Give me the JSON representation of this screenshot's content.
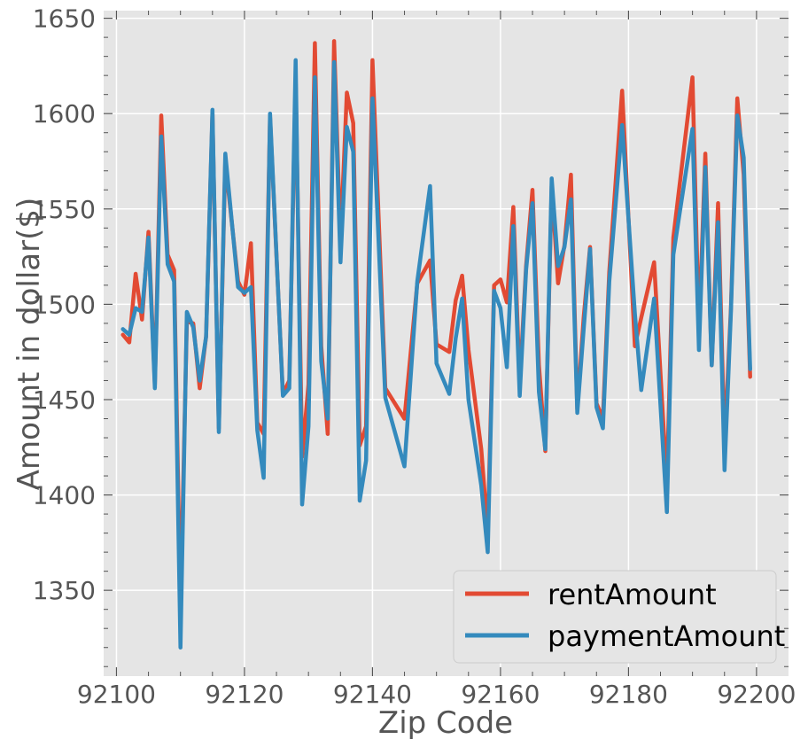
{
  "chart_data": {
    "type": "line",
    "title": "",
    "xlabel": "Zip Code",
    "ylabel": "Amount in dollar($)",
    "xlim": [
      92098,
      92205
    ],
    "ylim": [
      1305,
      1654
    ],
    "xticks": [
      92100,
      92120,
      92140,
      92160,
      92180,
      92200
    ],
    "yticks": [
      1350,
      1400,
      1450,
      1500,
      1550,
      1600,
      1650
    ],
    "x_tick_labels": [
      "92100",
      "92120",
      "92140",
      "92160",
      "92180",
      "92200"
    ],
    "y_tick_labels": [
      "1350",
      "1400",
      "1450",
      "1500",
      "1550",
      "1600",
      "1650"
    ],
    "grid": true,
    "legend_position": "lower-right",
    "colors": {
      "background": "#e5e5e5",
      "grid": "#ffffff",
      "axis": "#555555"
    },
    "series": [
      {
        "name": "rentAmount",
        "color": "#e24a33",
        "x": [
          92101,
          92102,
          92103,
          92104,
          92105,
          92106,
          92107,
          92108,
          92109,
          92110,
          92111,
          92112,
          92113,
          92114,
          92115,
          92116,
          92117,
          92119,
          92120,
          92121,
          92122,
          92123,
          92124,
          92126,
          92127,
          92128,
          92129,
          92130,
          92131,
          92132,
          92133,
          92134,
          92135,
          92136,
          92137,
          92138,
          92139,
          92140,
          92142,
          92145,
          92147,
          92149,
          92150,
          92152,
          92153,
          92154,
          92155,
          92157,
          92158,
          92159,
          92160,
          92161,
          92162,
          92163,
          92164,
          92165,
          92166,
          92167,
          92168,
          92169,
          92170,
          92171,
          92172,
          92173,
          92174,
          92175,
          92176,
          92177,
          92179,
          92181,
          92182,
          92184,
          92186,
          92187,
          92190,
          92191,
          92192,
          92193,
          92194,
          92195,
          92196,
          92197,
          92198,
          92199
        ],
        "values": [
          1484,
          1480,
          1516,
          1492,
          1538,
          1458,
          1599,
          1526,
          1518,
          1340,
          1491,
          1490,
          1456,
          1483,
          1600,
          1435,
          1575,
          1512,
          1505,
          1532,
          1438,
          1432,
          1598,
          1453,
          1460,
          1618,
          1420,
          1458,
          1637,
          1478,
          1432,
          1638,
          1532,
          1611,
          1595,
          1426,
          1436,
          1628,
          1456,
          1440,
          1511,
          1523,
          1479,
          1475,
          1502,
          1515,
          1476,
          1424,
          1380,
          1510,
          1513,
          1501,
          1551,
          1458,
          1520,
          1560,
          1468,
          1423,
          1562,
          1511,
          1531,
          1568,
          1445,
          1493,
          1530,
          1448,
          1440,
          1517,
          1612,
          1478,
          1493,
          1522,
          1405,
          1535,
          1619,
          1485,
          1579,
          1468,
          1553,
          1426,
          1498,
          1608,
          1568,
          1462
        ]
      },
      {
        "name": "paymentAmount",
        "color": "#348abd",
        "x": [
          92101,
          92102,
          92103,
          92104,
          92105,
          92106,
          92107,
          92108,
          92109,
          92110,
          92111,
          92112,
          92113,
          92114,
          92115,
          92116,
          92117,
          92119,
          92120,
          92121,
          92122,
          92123,
          92124,
          92126,
          92127,
          92128,
          92129,
          92130,
          92131,
          92132,
          92133,
          92134,
          92135,
          92136,
          92137,
          92138,
          92139,
          92140,
          92142,
          92145,
          92147,
          92149,
          92150,
          92152,
          92153,
          92154,
          92155,
          92157,
          92158,
          92159,
          92160,
          92161,
          92162,
          92163,
          92164,
          92165,
          92166,
          92167,
          92168,
          92169,
          92170,
          92171,
          92172,
          92173,
          92174,
          92175,
          92176,
          92177,
          92179,
          92181,
          92182,
          92184,
          92186,
          92187,
          92190,
          92191,
          92192,
          92193,
          92194,
          92195,
          92196,
          92197,
          92198,
          92199
        ],
        "values": [
          1487,
          1484,
          1498,
          1496,
          1535,
          1456,
          1588,
          1521,
          1512,
          1320,
          1496,
          1488,
          1460,
          1483,
          1602,
          1433,
          1579,
          1509,
          1506,
          1509,
          1434,
          1409,
          1600,
          1452,
          1456,
          1628,
          1395,
          1436,
          1619,
          1470,
          1440,
          1627,
          1522,
          1593,
          1580,
          1397,
          1418,
          1608,
          1451,
          1415,
          1512,
          1562,
          1469,
          1453,
          1482,
          1503,
          1450,
          1405,
          1370,
          1507,
          1498,
          1467,
          1541,
          1452,
          1518,
          1553,
          1454,
          1424,
          1566,
          1520,
          1530,
          1555,
          1443,
          1487,
          1529,
          1446,
          1435,
          1512,
          1594,
          1495,
          1455,
          1503,
          1391,
          1526,
          1592,
          1476,
          1572,
          1468,
          1543,
          1413,
          1496,
          1599,
          1577,
          1466
        ]
      }
    ]
  }
}
